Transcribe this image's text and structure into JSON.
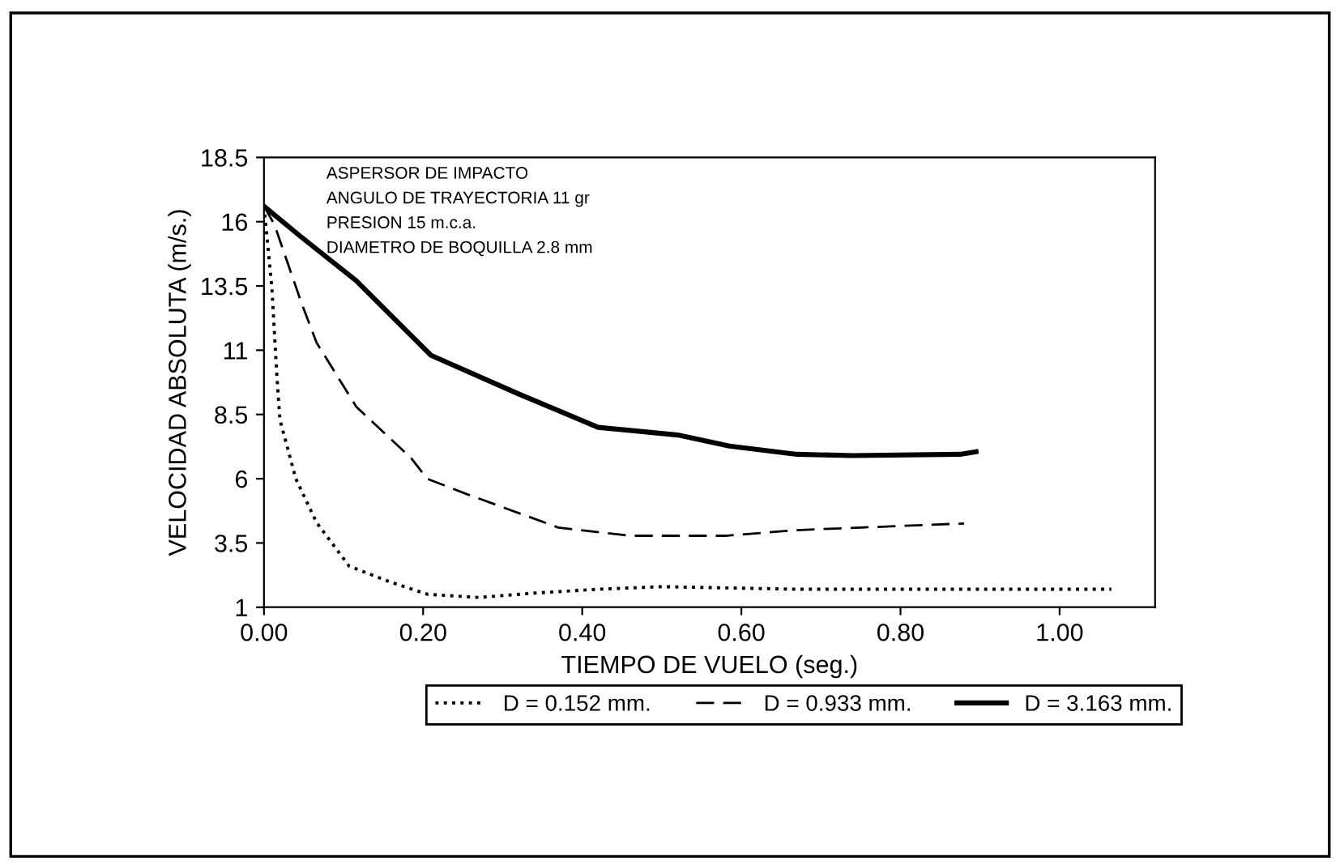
{
  "chart_data": {
    "type": "line",
    "xlabel": "TIEMPO DE VUELO (seg.)",
    "ylabel": "VELOCIDAD ABSOLUTA (m/s.)",
    "annotations": [
      "ASPERSOR DE IMPACTO",
      "ANGULO DE TRAYECTORIA 11 gr",
      "PRESION 15 m.c.a.",
      "DIAMETRO DE BOQUILLA 2.8 mm"
    ],
    "xlim": [
      0,
      1.12
    ],
    "xticks": [
      {
        "value": 0,
        "label": "0.00"
      },
      {
        "value": 0.2,
        "label": "0.20"
      },
      {
        "value": 0.4,
        "label": "0.40"
      },
      {
        "value": 0.6,
        "label": "0.60"
      },
      {
        "value": 0.8,
        "label": "0.80"
      },
      {
        "value": 1.0,
        "label": "1.00"
      }
    ],
    "ylim": [
      1,
      18.5
    ],
    "yticks": [
      1,
      3.5,
      6,
      8.5,
      11,
      13.5,
      16,
      18.5
    ],
    "grid": false,
    "legend": "bottom",
    "series": [
      {
        "name": "D = 0.152 mm.",
        "color": "#000000",
        "line_style": "dotted",
        "x": [
          0,
          0.01,
          0.016,
          0.02,
          0.04,
          0.066,
          0.107,
          0.157,
          0.206,
          0.27,
          0.34,
          0.42,
          0.5,
          0.67,
          1.065
        ],
        "values": [
          16.6,
          13.4,
          10.1,
          8.3,
          6,
          4.3,
          2.6,
          2.0,
          1.5,
          1.38,
          1.55,
          1.7,
          1.8,
          1.7,
          1.7
        ]
      },
      {
        "name": "D = 0.933 mm.",
        "color": "#000000",
        "line_style": "dashed",
        "x": [
          0,
          0.013,
          0.047,
          0.066,
          0.116,
          0.185,
          0.205,
          0.255,
          0.37,
          0.46,
          0.58,
          0.67,
          0.75,
          0.88
        ],
        "values": [
          16.6,
          15.9,
          12.85,
          11.3,
          8.8,
          6.8,
          6.0,
          5.4,
          4.1,
          3.78,
          3.78,
          4.0,
          4.1,
          4.26
        ]
      },
      {
        "name": "D = 3.163 mm.",
        "color": "#000000",
        "line_style": "solid",
        "x": [
          0,
          0.047,
          0.116,
          0.21,
          0.32,
          0.42,
          0.52,
          0.585,
          0.67,
          0.74,
          0.875,
          0.895
        ],
        "values": [
          16.6,
          15.4,
          13.7,
          10.8,
          9.3,
          8.0,
          7.7,
          7.27,
          6.95,
          6.9,
          6.95,
          7.05
        ]
      }
    ]
  }
}
